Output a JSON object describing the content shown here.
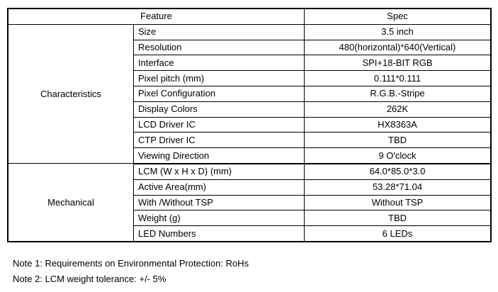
{
  "table": {
    "header": [
      "Feature",
      "Spec"
    ],
    "groups": [
      {
        "name": "Characteristics",
        "rows": [
          [
            "Size",
            "3.5 inch"
          ],
          [
            "Resolution",
            "480(horizontal)*640(Vertical)"
          ],
          [
            "Interface",
            "SPI+18-BIT RGB"
          ],
          [
            "Pixel pitch (mm)",
            "0.111*0.111"
          ],
          [
            "Pixel Configuration",
            "R.G.B.-Stripe"
          ],
          [
            "Display Colors",
            "262K"
          ],
          [
            "LCD Driver IC",
            "HX8363A"
          ],
          [
            "CTP Driver IC",
            "TBD"
          ],
          [
            "Viewing Direction",
            "9 O'clock"
          ]
        ]
      },
      {
        "name": "Mechanical",
        "rows": [
          [
            "LCM (W x H x D) (mm)",
            "64.0*85.0*3.0"
          ],
          [
            "Active Area(mm)",
            "53.28*71.04"
          ],
          [
            "With /Without TSP",
            "Without TSP"
          ],
          [
            "Weight (g)",
            "TBD"
          ],
          [
            "LED Numbers",
            "6 LEDs"
          ]
        ]
      }
    ]
  },
  "notes": [
    "Note 1: Requirements on Environmental Protection: RoHs",
    "Note 2: LCM weight tolerance: +/- 5%"
  ]
}
